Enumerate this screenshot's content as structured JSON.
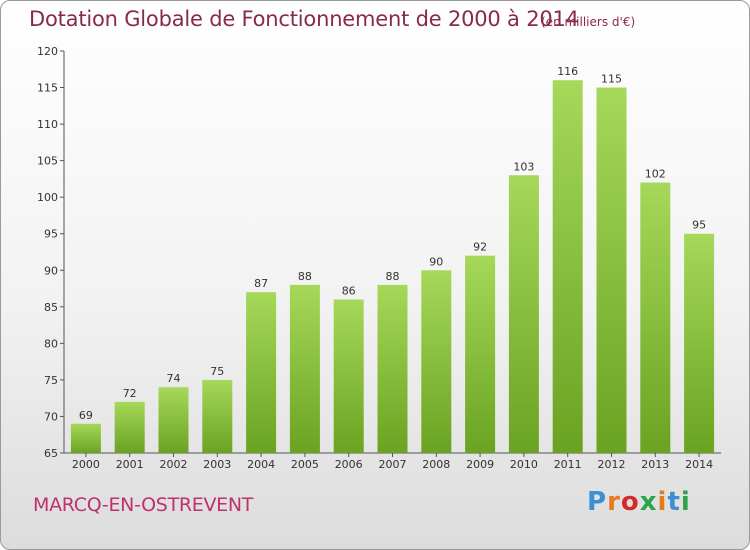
{
  "chart_data": {
    "type": "bar",
    "title": "Dotation Globale de Fonctionnement de 2000 à 2014",
    "subtitle": "(en milliers d'€)",
    "categories": [
      "2000",
      "2001",
      "2002",
      "2003",
      "2004",
      "2005",
      "2006",
      "2007",
      "2008",
      "2009",
      "2010",
      "2011",
      "2012",
      "2013",
      "2014"
    ],
    "values": [
      69,
      72,
      74,
      75,
      87,
      88,
      86,
      88,
      90,
      92,
      103,
      116,
      115,
      102,
      95
    ],
    "ylim": [
      65,
      120
    ],
    "yticks": [
      65,
      70,
      75,
      80,
      85,
      90,
      95,
      100,
      105,
      110,
      115,
      120
    ],
    "xlabel": "",
    "ylabel": "",
    "grid": false,
    "legend": "none",
    "colors": {
      "bar_light": "#a6d85a",
      "bar_dark": "#6aa321",
      "title": "#8a2a4a",
      "town": "#c0306a"
    }
  },
  "footer": {
    "town": "MARCQ-EN-OSTREVENT",
    "logo_text": "Proxiti",
    "logo_colors": [
      "#3d8fd0",
      "#e87a1e",
      "#d42a2a",
      "#2aa54a",
      "#e87a1e",
      "#3d8fd0",
      "#2aa54a"
    ]
  }
}
